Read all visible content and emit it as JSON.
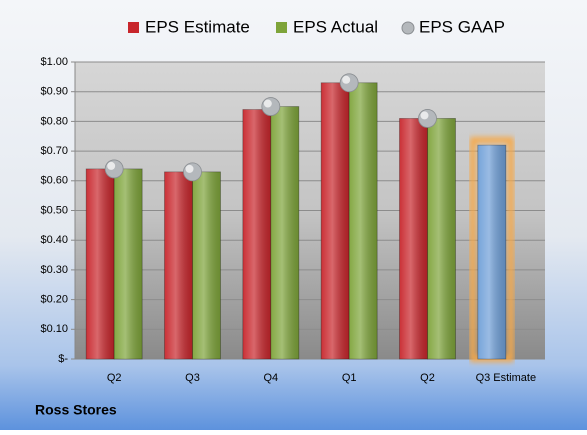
{
  "chart_data": {
    "type": "bar",
    "title": "Ross Stores",
    "categories": [
      "Q2",
      "Q3",
      "Q4",
      "Q1",
      "Q2",
      "Q3 Estimate"
    ],
    "series": [
      {
        "name": "EPS Estimate",
        "type": "bar",
        "color": "#c8262c",
        "colors": [
          "#c8262c",
          "#c8262c",
          "#c8262c",
          "#c8262c",
          "#c8262c",
          "#6f9fd8"
        ],
        "glow": [
          null,
          null,
          null,
          null,
          null,
          "#f6a94a"
        ],
        "values": [
          0.64,
          0.63,
          0.84,
          0.93,
          0.81,
          0.72
        ]
      },
      {
        "name": "EPS Actual",
        "type": "bar",
        "color": "#7ea43a",
        "values": [
          0.64,
          0.63,
          0.85,
          0.93,
          0.81,
          null
        ]
      },
      {
        "name": "EPS GAAP",
        "type": "scatter",
        "color": "#b4b8bc",
        "values": [
          0.64,
          0.63,
          0.85,
          0.93,
          0.81,
          null
        ]
      }
    ],
    "ylim": [
      0,
      1
    ],
    "yticks": [
      {
        "value": 0,
        "label": "$-"
      },
      {
        "value": 0.1,
        "label": "$0.10"
      },
      {
        "value": 0.2,
        "label": "$0.20"
      },
      {
        "value": 0.3,
        "label": "$0.30"
      },
      {
        "value": 0.4,
        "label": "$0.40"
      },
      {
        "value": 0.5,
        "label": "$0.50"
      },
      {
        "value": 0.6,
        "label": "$0.60"
      },
      {
        "value": 0.7,
        "label": "$0.70"
      },
      {
        "value": 0.8,
        "label": "$0.80"
      },
      {
        "value": 0.9,
        "label": "$0.90"
      },
      {
        "value": 1,
        "label": "$1.00"
      }
    ],
    "grid": true,
    "legend": "top"
  }
}
